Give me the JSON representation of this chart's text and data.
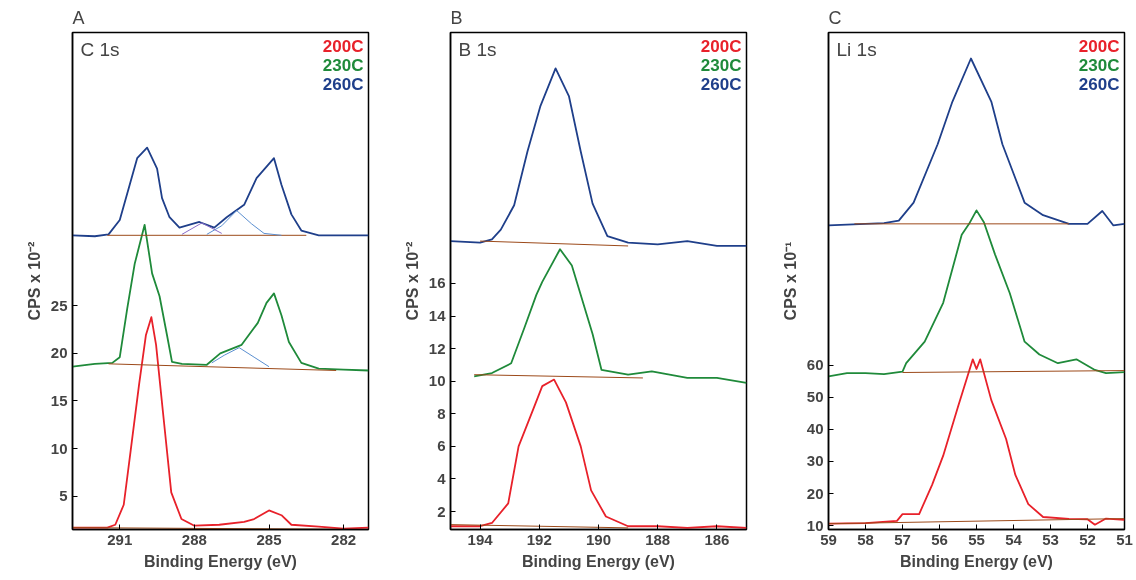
{
  "chart_data": [
    {
      "type": "line",
      "title": "A",
      "subtitle": "C 1s",
      "xlabel": "Binding Energy (eV)",
      "ylabel": "CPS x 10⁻²",
      "xlim": [
        292.9,
        281.0
      ],
      "ylim": [
        1.5,
        53.7
      ],
      "xticks": [
        291,
        288,
        285,
        282
      ],
      "yticks": [
        5,
        10,
        15,
        20,
        25
      ],
      "grid": false,
      "legend": "top right",
      "series": [
        {
          "name": "200C",
          "color": "#e8212a",
          "x": [
            292.9,
            291.5,
            291.18,
            290.84,
            290.56,
            290.22,
            289.95,
            289.73,
            289.54,
            289.27,
            288.93,
            288.52,
            288.0,
            287.0,
            286.0,
            285.6,
            285.0,
            284.5,
            284.1,
            283.0,
            282.0,
            281.0
          ],
          "values": [
            1.7,
            1.7,
            2.0,
            4.1,
            9.8,
            16.8,
            21.9,
            23.8,
            20.9,
            14.0,
            5.4,
            2.6,
            1.9,
            2.0,
            2.3,
            2.6,
            3.5,
            3.0,
            2.0,
            1.8,
            1.6,
            1.7
          ]
        },
        {
          "name": "230C",
          "color": "#1f8a3a",
          "x": [
            292.9,
            292.0,
            291.3,
            291.0,
            290.7,
            290.4,
            290.0,
            289.7,
            289.4,
            289.1,
            288.9,
            288.5,
            287.5,
            286.96,
            286.1,
            285.45,
            285.1,
            284.8,
            284.5,
            284.2,
            283.7,
            283.0,
            282.0,
            281.0
          ],
          "values": [
            18.6,
            18.9,
            19.0,
            19.6,
            24.7,
            29.4,
            33.5,
            28.4,
            26.0,
            21.9,
            19.1,
            18.9,
            18.8,
            20.0,
            20.9,
            23.2,
            25.3,
            26.3,
            24.0,
            21.2,
            19.0,
            18.4,
            18.3,
            18.2
          ]
        },
        {
          "name": "260C",
          "color": "#1f3f8a",
          "x": [
            292.9,
            292.0,
            291.45,
            291.0,
            290.6,
            290.3,
            289.9,
            289.5,
            289.3,
            289.0,
            288.6,
            287.8,
            287.2,
            286.7,
            286.0,
            285.5,
            284.8,
            284.5,
            284.1,
            283.7,
            283.0,
            282.0,
            281.0
          ],
          "values": [
            32.4,
            32.3,
            32.5,
            34.0,
            37.7,
            40.5,
            41.6,
            39.4,
            36.3,
            34.3,
            33.2,
            33.8,
            33.2,
            34.3,
            35.6,
            38.4,
            40.5,
            37.7,
            34.6,
            32.9,
            32.4,
            32.4,
            32.4
          ]
        },
        {
          "color": "#9c4a1a",
          "x": [
            292.9,
            281.0
          ],
          "values": [
            1.7,
            1.5
          ]
        },
        {
          "color": "#9c4a1a",
          "x": [
            291.45,
            282.3
          ],
          "values": [
            18.9,
            18.2
          ]
        },
        {
          "color": "#9c4a1a",
          "x": [
            291.5,
            283.5
          ],
          "values": [
            32.4,
            32.4
          ]
        },
        {
          "color": "#5b8fd0",
          "x": [
            287.3,
            286.8,
            286.2,
            285.6,
            285.0
          ],
          "values": [
            19.0,
            19.8,
            20.6,
            19.6,
            18.6
          ]
        },
        {
          "color": "#5b8fd0",
          "x": [
            287.5,
            286.9,
            286.3,
            285.7,
            285.2,
            284.5
          ],
          "values": [
            32.5,
            33.4,
            35.0,
            33.6,
            32.6,
            32.4
          ]
        },
        {
          "color": "#8a6cc8",
          "x": [
            288.5,
            287.7,
            286.9
          ],
          "values": [
            32.5,
            33.7,
            32.6
          ]
        }
      ]
    },
    {
      "type": "line",
      "title": "B",
      "subtitle": "B 1s",
      "xlabel": "Binding Energy (eV)",
      "ylabel": "CPS x 10⁻²",
      "xlim": [
        195,
        185
      ],
      "ylim": [
        0.9,
        31.4
      ],
      "xticks": [
        194,
        192,
        190,
        188,
        186
      ],
      "yticks": [
        2,
        4,
        6,
        8,
        10,
        12,
        14,
        16
      ],
      "grid": false,
      "legend": "top right",
      "series": [
        {
          "name": "200C",
          "color": "#e8212a",
          "x": [
            195,
            194,
            193.6,
            193.05,
            192.7,
            192.2,
            191.9,
            191.5,
            191.1,
            190.6,
            190.25,
            189.75,
            189,
            188,
            187,
            186,
            185
          ],
          "values": [
            1.1,
            1.1,
            1.3,
            2.5,
            6.0,
            8.3,
            9.7,
            10.1,
            8.7,
            6.0,
            3.3,
            1.7,
            1.1,
            1.1,
            1.0,
            1.1,
            1.0
          ]
        },
        {
          "name": "230C",
          "color": "#1f8a3a",
          "x": [
            194.2,
            193.6,
            192.95,
            192.5,
            192.1,
            191.9,
            191.3,
            190.9,
            190.4,
            190.2,
            189.9,
            189.0,
            188.2,
            187.0,
            186.0,
            185.0
          ],
          "values": [
            10.3,
            10.5,
            11.1,
            13.3,
            15.3,
            16.1,
            18.1,
            17.1,
            14.1,
            12.9,
            10.7,
            10.4,
            10.6,
            10.2,
            10.2,
            9.9
          ]
        },
        {
          "name": "260C",
          "color": "#1f3f8a",
          "x": [
            195,
            194,
            193.6,
            193.3,
            192.85,
            192.4,
            191.96,
            191.45,
            191.0,
            190.6,
            190.2,
            189.7,
            189,
            188,
            187,
            186,
            185
          ],
          "values": [
            18.6,
            18.5,
            18.7,
            19.3,
            20.8,
            24.1,
            26.9,
            29.2,
            27.5,
            24.1,
            20.9,
            18.9,
            18.5,
            18.4,
            18.6,
            18.3,
            18.3
          ]
        },
        {
          "color": "#9c4a1a",
          "x": [
            195,
            189
          ],
          "values": [
            1.2,
            1.0
          ]
        },
        {
          "color": "#9c4a1a",
          "x": [
            194.2,
            188.5
          ],
          "values": [
            10.4,
            10.2
          ]
        },
        {
          "color": "#9c4a1a",
          "x": [
            194,
            189
          ],
          "values": [
            18.6,
            18.3
          ]
        }
      ]
    },
    {
      "type": "line",
      "title": "C",
      "subtitle": "Li 1s",
      "xlabel": "Binding Energy (eV)",
      "ylabel": "CPS x 10⁻¹",
      "xlim": [
        59,
        51
      ],
      "ylim": [
        8.8,
        163.6
      ],
      "xticks": [
        59,
        58,
        57,
        56,
        55,
        54,
        53,
        52,
        51
      ],
      "yticks": [
        10,
        20,
        30,
        40,
        50,
        60
      ],
      "grid": false,
      "legend": "top right",
      "series": [
        {
          "name": "200C",
          "color": "#e8212a",
          "x": [
            59,
            58,
            57.15,
            57.0,
            56.55,
            56.2,
            55.9,
            55.5,
            55.1,
            55.0,
            54.9,
            54.6,
            54.2,
            53.95,
            53.6,
            53.2,
            52.5,
            52.0,
            51.8,
            51.5,
            51.0
          ],
          "values": [
            10.6,
            10.8,
            11.5,
            13.6,
            13.6,
            22.7,
            31.8,
            47,
            61.8,
            58.8,
            61.8,
            49.1,
            37,
            25.8,
            16.7,
            12.7,
            12.1,
            12,
            10.3,
            12.2,
            11.8
          ]
        },
        {
          "name": "230C",
          "color": "#1f8a3a",
          "x": [
            59,
            58.5,
            58,
            57.5,
            57.0,
            56.9,
            56.4,
            55.9,
            55.4,
            55.2,
            55.0,
            54.8,
            54.5,
            54.1,
            53.7,
            53.3,
            52.8,
            52.3,
            51.8,
            51.5,
            51.0
          ],
          "values": [
            56.5,
            57.5,
            57.5,
            57.2,
            58,
            60.6,
            67.3,
            79.4,
            100.6,
            104,
            108.2,
            104.5,
            94.5,
            82.4,
            67.3,
            63.3,
            60.6,
            61.8,
            58.5,
            57.5,
            57.8
          ]
        },
        {
          "name": "260C",
          "color": "#1f3f8a",
          "x": [
            59,
            58,
            57.5,
            57.1,
            56.7,
            56.05,
            55.65,
            55.15,
            54.6,
            54.3,
            53.7,
            53.2,
            52.5,
            52.0,
            51.6,
            51.3,
            51.0
          ],
          "values": [
            103.5,
            104,
            104.2,
            105,
            110.6,
            128.8,
            142.1,
            155.5,
            142.1,
            128.8,
            110.6,
            106.7,
            104,
            104,
            108,
            103.5,
            104
          ]
        },
        {
          "color": "#9c4a1a",
          "x": [
            59,
            51
          ],
          "values": [
            10.6,
            12.2
          ]
        },
        {
          "color": "#9c4a1a",
          "x": [
            57,
            51
          ],
          "values": [
            57.7,
            58.3
          ]
        },
        {
          "color": "#9c4a1a",
          "x": [
            58.3,
            52.5
          ],
          "values": [
            104,
            104
          ]
        }
      ]
    }
  ]
}
